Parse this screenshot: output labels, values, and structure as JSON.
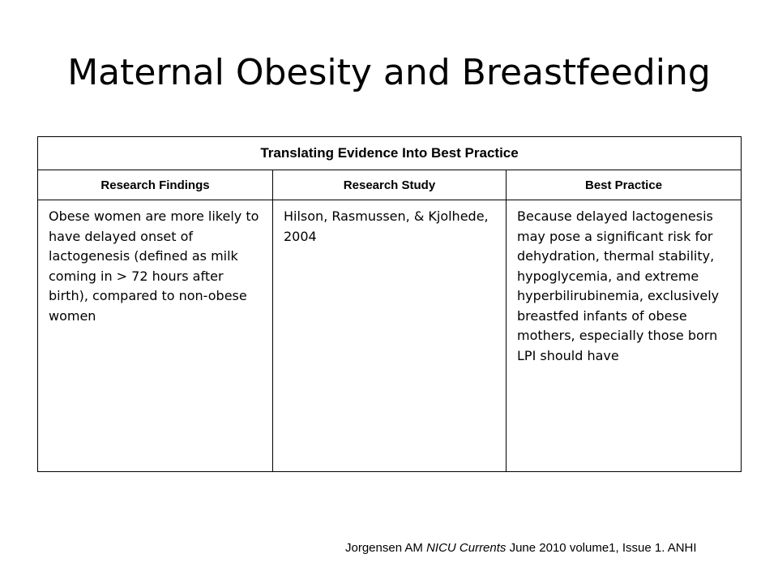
{
  "slide": {
    "title": "Maternal Obesity and Breastfeeding"
  },
  "table": {
    "caption": "Translating Evidence Into Best Practice",
    "headers": [
      "Research Findings",
      "Research Study",
      "Best Practice"
    ],
    "rows": [
      [
        "Obese women are more likely to have delayed onset of lactogenesis (defined as milk coming in > 72 hours after birth), compared to non-obese women",
        "Hilson, Rasmussen, & Kjolhede, 2004",
        "Because delayed lactogenesis may pose a significant risk for dehydration, thermal stability, hypoglycemia, and extreme hyperbilirubinemia, exclusively breastfed infants of obese mothers, especially those born LPI should have"
      ]
    ]
  },
  "citation": {
    "prefix": "Jorgensen AM ",
    "journal": "NICU Currents",
    "suffix": " June 2010  volume1, Issue 1. ANHI"
  }
}
